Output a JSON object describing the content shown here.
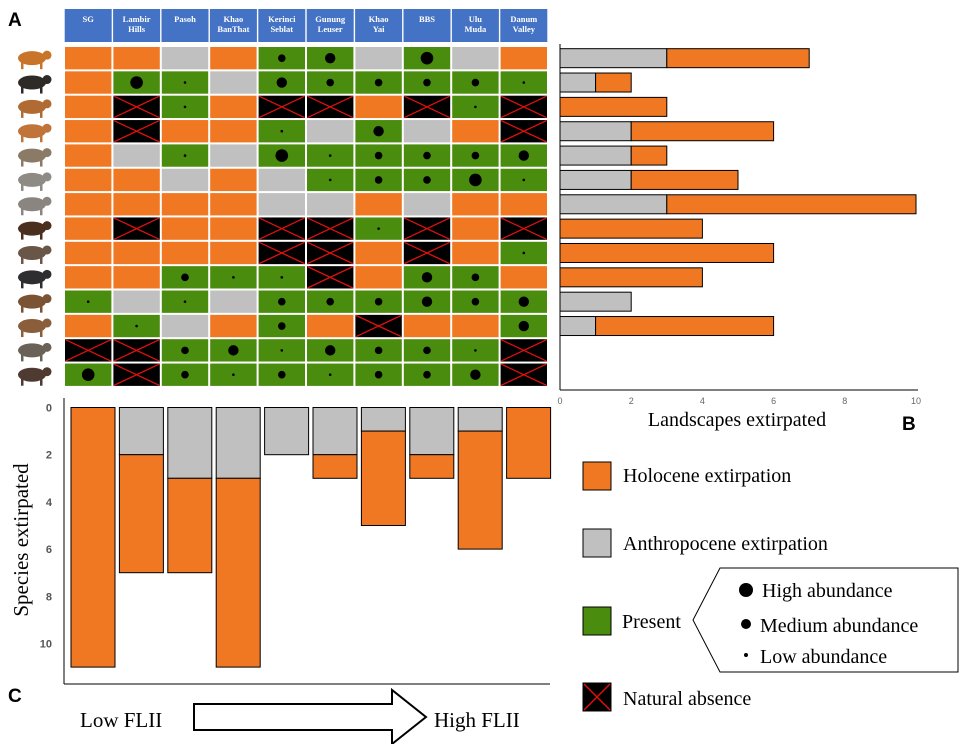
{
  "panel_labels": {
    "a": "A",
    "b": "B",
    "c": "C"
  },
  "colors": {
    "holocene": "#F07823",
    "anthropocene": "#C0C0C0",
    "present": "#4A8C0E",
    "natural_absence": "#000000",
    "cross": "#E01010",
    "header": "#4472C4",
    "header_text": "#FFFFFF"
  },
  "grid_codes": {
    "H": "holocene",
    "A": "anthropocene",
    "P": "present",
    "X": "natural_absence"
  },
  "sites": [
    "SG",
    "Lambir Hills",
    "Pasoh",
    "Khao BanThat",
    "Kerinci Seblat",
    "Gunung Leuser",
    "Khao Yai",
    "BBS",
    "Ulu Muda",
    "Danum Valley"
  ],
  "species_icons": [
    "tiger-icon",
    "sun-bear-icon",
    "dhole-icon",
    "wild-dog-icon",
    "leopard-cat-icon",
    "elephant-icon",
    "rhinoceros-icon",
    "gaur-icon",
    "banteng-icon",
    "tapir-icon",
    "sambar-deer-icon",
    "muntjac-icon",
    "pig-tailed-macaque-icon",
    "wild-boar-icon"
  ],
  "grid": [
    [
      "H",
      "H",
      "A",
      "H",
      "P2",
      "P3",
      "A",
      "P4",
      "A",
      "H"
    ],
    [
      "H",
      "P4",
      "P1",
      "A",
      "P3",
      "P2",
      "P2",
      "P2",
      "P2",
      "P1"
    ],
    [
      "H",
      "X",
      "P1",
      "H",
      "X",
      "X",
      "H",
      "X",
      "P1",
      "X"
    ],
    [
      "H",
      "X",
      "H",
      "H",
      "P1",
      "A",
      "P3",
      "A",
      "H",
      "X"
    ],
    [
      "H",
      "A",
      "P1",
      "A",
      "P4",
      "P1",
      "P2",
      "P2",
      "P2",
      "P3"
    ],
    [
      "H",
      "H",
      "A",
      "H",
      "A",
      "P1",
      "P2",
      "P2",
      "P4",
      "P1"
    ],
    [
      "H",
      "H",
      "H",
      "H",
      "A",
      "A",
      "H",
      "A",
      "H",
      "H"
    ],
    [
      "H",
      "X",
      "H",
      "H",
      "X",
      "X",
      "P1",
      "X",
      "H",
      "X"
    ],
    [
      "H",
      "H",
      "H",
      "H",
      "X",
      "X",
      "H",
      "X",
      "H",
      "P1"
    ],
    [
      "H",
      "H",
      "P2",
      "P1",
      "P1",
      "X",
      "H",
      "P3",
      "P2",
      "H"
    ],
    [
      "P1",
      "A",
      "P1",
      "A",
      "P2",
      "P2",
      "P2",
      "P3",
      "P2",
      "P3"
    ],
    [
      "H",
      "P1",
      "A",
      "H",
      "P2",
      "H",
      "X",
      "H",
      "H",
      "P3"
    ],
    [
      "X",
      "X",
      "P2",
      "P3",
      "P1",
      "P3",
      "P2",
      "P2",
      "P1",
      "X"
    ],
    [
      "P4",
      "X",
      "P2",
      "P1",
      "P2",
      "P1",
      "P2",
      "P2",
      "P3",
      "X"
    ]
  ],
  "chart_data": [
    {
      "type": "bar",
      "orientation": "horizontal",
      "stacked": true,
      "categories": [
        "tiger",
        "sun bear",
        "dhole",
        "wild dog",
        "leopard cat",
        "elephant",
        "rhinoceros",
        "gaur",
        "banteng",
        "tapir",
        "sambar deer",
        "muntjac",
        "pig-tailed macaque",
        "wild boar"
      ],
      "series": [
        {
          "name": "Anthropocene extirpation",
          "values": [
            3,
            1,
            0,
            2,
            2,
            2,
            3,
            0,
            0,
            0,
            2,
            1,
            0,
            0
          ]
        },
        {
          "name": "Holocene extirpation",
          "values": [
            4,
            1,
            3,
            4,
            1,
            3,
            7,
            4,
            6,
            4,
            0,
            5,
            0,
            0
          ]
        }
      ],
      "xlabel": "Landscapes extirpated",
      "xlim": [
        0,
        10
      ],
      "xticks": [
        "0",
        "2",
        "4",
        "6",
        "8",
        "10"
      ]
    },
    {
      "type": "bar",
      "stacked": true,
      "categories": [
        "SG",
        "Lambir Hills",
        "Pasoh",
        "Khao BanThat",
        "Kerinci Seblat",
        "Gunung Leuser",
        "Khao Yai",
        "BBS",
        "Ulu Muda",
        "Danum Valley"
      ],
      "series": [
        {
          "name": "Anthropocene extirpation",
          "values": [
            0,
            2,
            3,
            3,
            2,
            2,
            1,
            2,
            1,
            0
          ]
        },
        {
          "name": "Holocene extirpation",
          "values": [
            11,
            5,
            4,
            8,
            0,
            1,
            4,
            1,
            5,
            3
          ]
        }
      ],
      "ylabel": "Species extirpated",
      "ylim": [
        0,
        11
      ],
      "yticks": [
        "0",
        "2",
        "4",
        "6",
        "8",
        "10"
      ],
      "y_inverted": true
    }
  ],
  "legend": {
    "holocene": "Holocene extirpation",
    "anthropocene": "Anthropocene extirpation",
    "present": "Present",
    "high": "High abundance",
    "medium": "Medium abundance",
    "low": "Low abundance",
    "absence": "Natural absence"
  },
  "flii": {
    "low": "Low FLII",
    "high": "High FLII"
  }
}
